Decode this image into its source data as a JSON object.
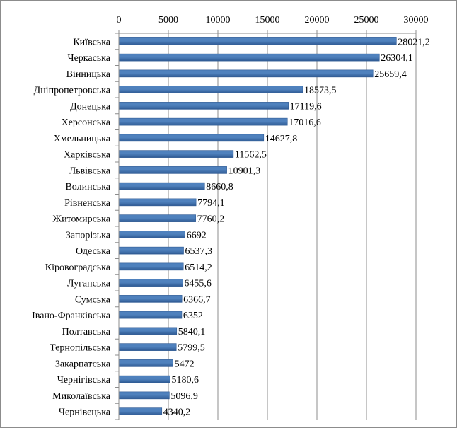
{
  "chart_data": {
    "type": "bar",
    "orientation": "horizontal",
    "x_axis_position": "top",
    "categories": [
      "Київська",
      "Черкаська",
      "Вінницька",
      "Дніпропетровська",
      "Донецька",
      "Херсонська",
      "Хмельницька",
      "Харківська",
      "Львівська",
      "Волинська",
      "Рівненська",
      "Житомирська",
      "Запорізька",
      "Одеська",
      "Кіровоградська",
      "Луганська",
      "Сумська",
      "Івано-Франківська",
      "Полтавська",
      "Тернопільська",
      "Закарпатська",
      "Чернігівська",
      "Миколаївська",
      "Чернівецька"
    ],
    "values": [
      28021.2,
      26304.1,
      25659.4,
      18573.5,
      17119.6,
      17016.6,
      14627.8,
      11562.5,
      10901.3,
      8660.8,
      7794.1,
      7760.2,
      6692,
      6537.3,
      6514.2,
      6455.6,
      6366.7,
      6352,
      5840.1,
      5799.5,
      5472,
      5180.6,
      5096.9,
      4340.2
    ],
    "value_labels": [
      "28021,2",
      "26304,1",
      "25659,4",
      "18573,5",
      "17119,6",
      "17016,6",
      "14627,8",
      "11562,5",
      "10901,3",
      "8660,8",
      "7794,1",
      "7760,2",
      "6692",
      "6537,3",
      "6514,2",
      "6455,6",
      "6366,7",
      "6352",
      "5840,1",
      "5799,5",
      "5472",
      "5180,6",
      "5096,9",
      "4340,2"
    ],
    "ticks": [
      0,
      5000,
      10000,
      15000,
      20000,
      25000,
      30000
    ],
    "tick_labels": [
      "0",
      "5000",
      "10000",
      "15000",
      "20000",
      "25000",
      "30000"
    ],
    "xlim": [
      0,
      30000
    ],
    "grid": true,
    "legend": "none",
    "bar_color": "#4f81bd",
    "bar_shade_color": "#2f5a93",
    "title": "",
    "xlabel": "",
    "ylabel": ""
  }
}
